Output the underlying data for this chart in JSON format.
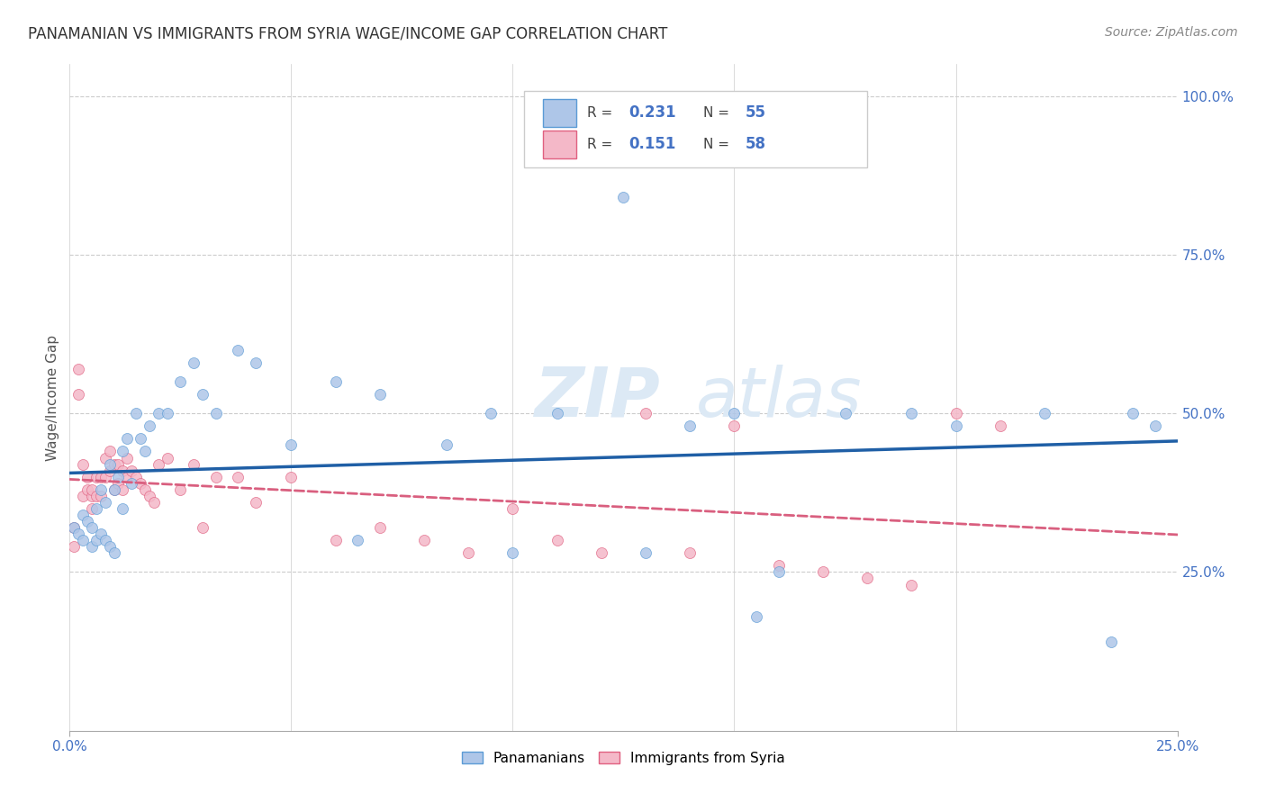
{
  "title": "PANAMANIAN VS IMMIGRANTS FROM SYRIA WAGE/INCOME GAP CORRELATION CHART",
  "source": "Source: ZipAtlas.com",
  "ylabel": "Wage/Income Gap",
  "ytick_labels": [
    "25.0%",
    "50.0%",
    "75.0%",
    "100.0%"
  ],
  "ytick_values": [
    0.25,
    0.5,
    0.75,
    1.0
  ],
  "xlim": [
    0.0,
    0.25
  ],
  "ylim": [
    0.0,
    1.05
  ],
  "legend_r1": "0.231",
  "legend_n1": "55",
  "legend_r2": "0.151",
  "legend_n2": "58",
  "blue_color": "#aec6e8",
  "blue_edge_color": "#5b9bd5",
  "pink_color": "#f4b8c8",
  "pink_edge_color": "#e06080",
  "blue_line_color": "#1f5fa6",
  "pink_line_color": "#d95f7f",
  "watermark_color": "#dce9f5",
  "grid_color": "#cccccc",
  "tick_label_color": "#4472c4",
  "title_color": "#333333",
  "source_color": "#888888",
  "blue_x": [
    0.001,
    0.002,
    0.003,
    0.003,
    0.004,
    0.005,
    0.005,
    0.006,
    0.006,
    0.007,
    0.007,
    0.008,
    0.008,
    0.009,
    0.009,
    0.01,
    0.01,
    0.011,
    0.012,
    0.012,
    0.013,
    0.014,
    0.015,
    0.016,
    0.017,
    0.018,
    0.02,
    0.022,
    0.025,
    0.028,
    0.03,
    0.033,
    0.038,
    0.042,
    0.05,
    0.06,
    0.065,
    0.07,
    0.085,
    0.095,
    0.1,
    0.11,
    0.125,
    0.13,
    0.14,
    0.15,
    0.16,
    0.175,
    0.19,
    0.2,
    0.155,
    0.22,
    0.235,
    0.24,
    0.245
  ],
  "blue_y": [
    0.32,
    0.31,
    0.3,
    0.34,
    0.33,
    0.32,
    0.29,
    0.35,
    0.3,
    0.38,
    0.31,
    0.36,
    0.3,
    0.42,
    0.29,
    0.38,
    0.28,
    0.4,
    0.44,
    0.35,
    0.46,
    0.39,
    0.5,
    0.46,
    0.44,
    0.48,
    0.5,
    0.5,
    0.55,
    0.58,
    0.53,
    0.5,
    0.6,
    0.58,
    0.45,
    0.55,
    0.3,
    0.53,
    0.45,
    0.5,
    0.28,
    0.5,
    0.84,
    0.28,
    0.48,
    0.5,
    0.25,
    0.5,
    0.5,
    0.48,
    0.18,
    0.5,
    0.14,
    0.5,
    0.48
  ],
  "pink_x": [
    0.001,
    0.001,
    0.002,
    0.002,
    0.003,
    0.003,
    0.004,
    0.004,
    0.005,
    0.005,
    0.005,
    0.006,
    0.006,
    0.007,
    0.007,
    0.008,
    0.008,
    0.009,
    0.009,
    0.01,
    0.01,
    0.011,
    0.011,
    0.012,
    0.012,
    0.013,
    0.013,
    0.014,
    0.015,
    0.016,
    0.017,
    0.018,
    0.019,
    0.02,
    0.022,
    0.025,
    0.028,
    0.03,
    0.033,
    0.038,
    0.042,
    0.05,
    0.06,
    0.07,
    0.08,
    0.09,
    0.1,
    0.11,
    0.12,
    0.13,
    0.14,
    0.15,
    0.16,
    0.17,
    0.18,
    0.19,
    0.2,
    0.21
  ],
  "pink_y": [
    0.32,
    0.29,
    0.57,
    0.53,
    0.37,
    0.42,
    0.4,
    0.38,
    0.37,
    0.35,
    0.38,
    0.4,
    0.37,
    0.4,
    0.37,
    0.43,
    0.4,
    0.44,
    0.41,
    0.42,
    0.38,
    0.42,
    0.39,
    0.41,
    0.38,
    0.43,
    0.4,
    0.41,
    0.4,
    0.39,
    0.38,
    0.37,
    0.36,
    0.42,
    0.43,
    0.38,
    0.42,
    0.32,
    0.4,
    0.4,
    0.36,
    0.4,
    0.3,
    0.32,
    0.3,
    0.28,
    0.35,
    0.3,
    0.28,
    0.5,
    0.28,
    0.48,
    0.26,
    0.25,
    0.24,
    0.23,
    0.5,
    0.48
  ]
}
